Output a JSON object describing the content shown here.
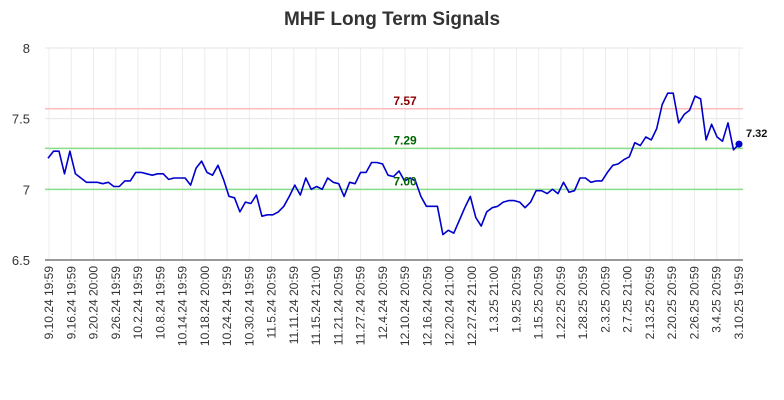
{
  "chart_data": {
    "type": "line",
    "title": "MHF Long Term Signals",
    "xlabel": "",
    "ylabel": "",
    "ylim": [
      6.5,
      8
    ],
    "y_ticks": [
      6.5,
      7,
      7.5,
      8
    ],
    "y_tick_labels": [
      "6.5",
      "7",
      "7.5",
      "8"
    ],
    "grid": true,
    "x_tick_labels": [
      "9.10.24 19:59",
      "9.16.24 19:59",
      "9.20.24 20:00",
      "9.26.24 19:59",
      "10.2.24 19:59",
      "10.8.24 19:59",
      "10.14.24 19:59",
      "10.18.24 20:00",
      "10.24.24 19:59",
      "10.30.24 19:59",
      "11.5.24 20:59",
      "11.11.24 20:59",
      "11.15.24 21:00",
      "11.21.24 20:59",
      "11.27.24 20:59",
      "12.4.24 20:59",
      "12.10.24 20:59",
      "12.16.24 20:59",
      "12.20.24 21:00",
      "12.27.24 21:00",
      "1.3.25 21:00",
      "1.9.25 20:59",
      "1.15.25 20:59",
      "1.22.25 20:59",
      "1.28.25 20:59",
      "2.3.25 20:59",
      "2.7.25 21:00",
      "2.13.25 20:59",
      "2.20.25 20:59",
      "2.26.25 20:59",
      "3.4.25 20:59",
      "3.10.25 19:59"
    ],
    "series": [
      {
        "values": [
          7.22,
          7.27,
          7.27,
          7.11,
          7.27,
          7.11,
          7.08,
          7.05,
          7.05,
          7.05,
          7.04,
          7.05,
          7.02,
          7.02,
          7.06,
          7.06,
          7.12,
          7.12,
          7.11,
          7.1,
          7.11,
          7.11,
          7.07,
          7.08,
          7.08,
          7.08,
          7.03,
          7.15,
          7.2,
          7.12,
          7.1,
          7.17,
          7.07,
          6.95,
          6.94,
          6.84,
          6.91,
          6.9,
          6.96,
          6.81,
          6.82,
          6.82,
          6.84,
          6.88,
          6.95,
          7.03,
          6.96,
          7.08,
          7.0,
          7.02,
          7.0,
          7.08,
          7.05,
          7.04,
          6.95,
          7.05,
          7.04,
          7.12,
          7.12,
          7.19,
          7.19,
          7.18,
          7.1,
          7.09,
          7.13,
          7.06,
          7.08,
          7.06,
          6.95,
          6.88,
          6.88,
          6.88,
          6.68,
          6.71,
          6.69,
          6.78,
          6.87,
          6.95,
          6.8,
          6.74,
          6.84,
          6.87,
          6.88,
          6.91,
          6.92,
          6.92,
          6.91,
          6.87,
          6.91,
          6.99,
          6.99,
          6.97,
          7.0,
          6.97,
          7.05,
          6.98,
          6.99,
          7.08,
          7.08,
          7.05,
          7.06,
          7.06,
          7.12,
          7.17,
          7.18,
          7.21,
          7.23,
          7.33,
          7.31,
          7.37,
          7.35,
          7.43,
          7.6,
          7.68,
          7.68,
          7.47,
          7.53,
          7.56,
          7.66,
          7.64,
          7.35,
          7.46,
          7.37,
          7.34,
          7.47,
          7.28,
          7.32
        ],
        "color": "#0000cc"
      }
    ],
    "reference_lines": [
      {
        "value": 7.57,
        "label": "7.57",
        "line_color": "#ffbbbb",
        "label_color": "#8b0000"
      },
      {
        "value": 7.29,
        "label": "7.29",
        "line_color": "#88dd88",
        "label_color": "#006400"
      },
      {
        "value": 7.0,
        "label": "7.00",
        "line_color": "#88dd88",
        "label_color": "#006400"
      }
    ],
    "last_value": 7.32,
    "last_value_label": "7.32",
    "last_point_color": "#0000cc"
  }
}
